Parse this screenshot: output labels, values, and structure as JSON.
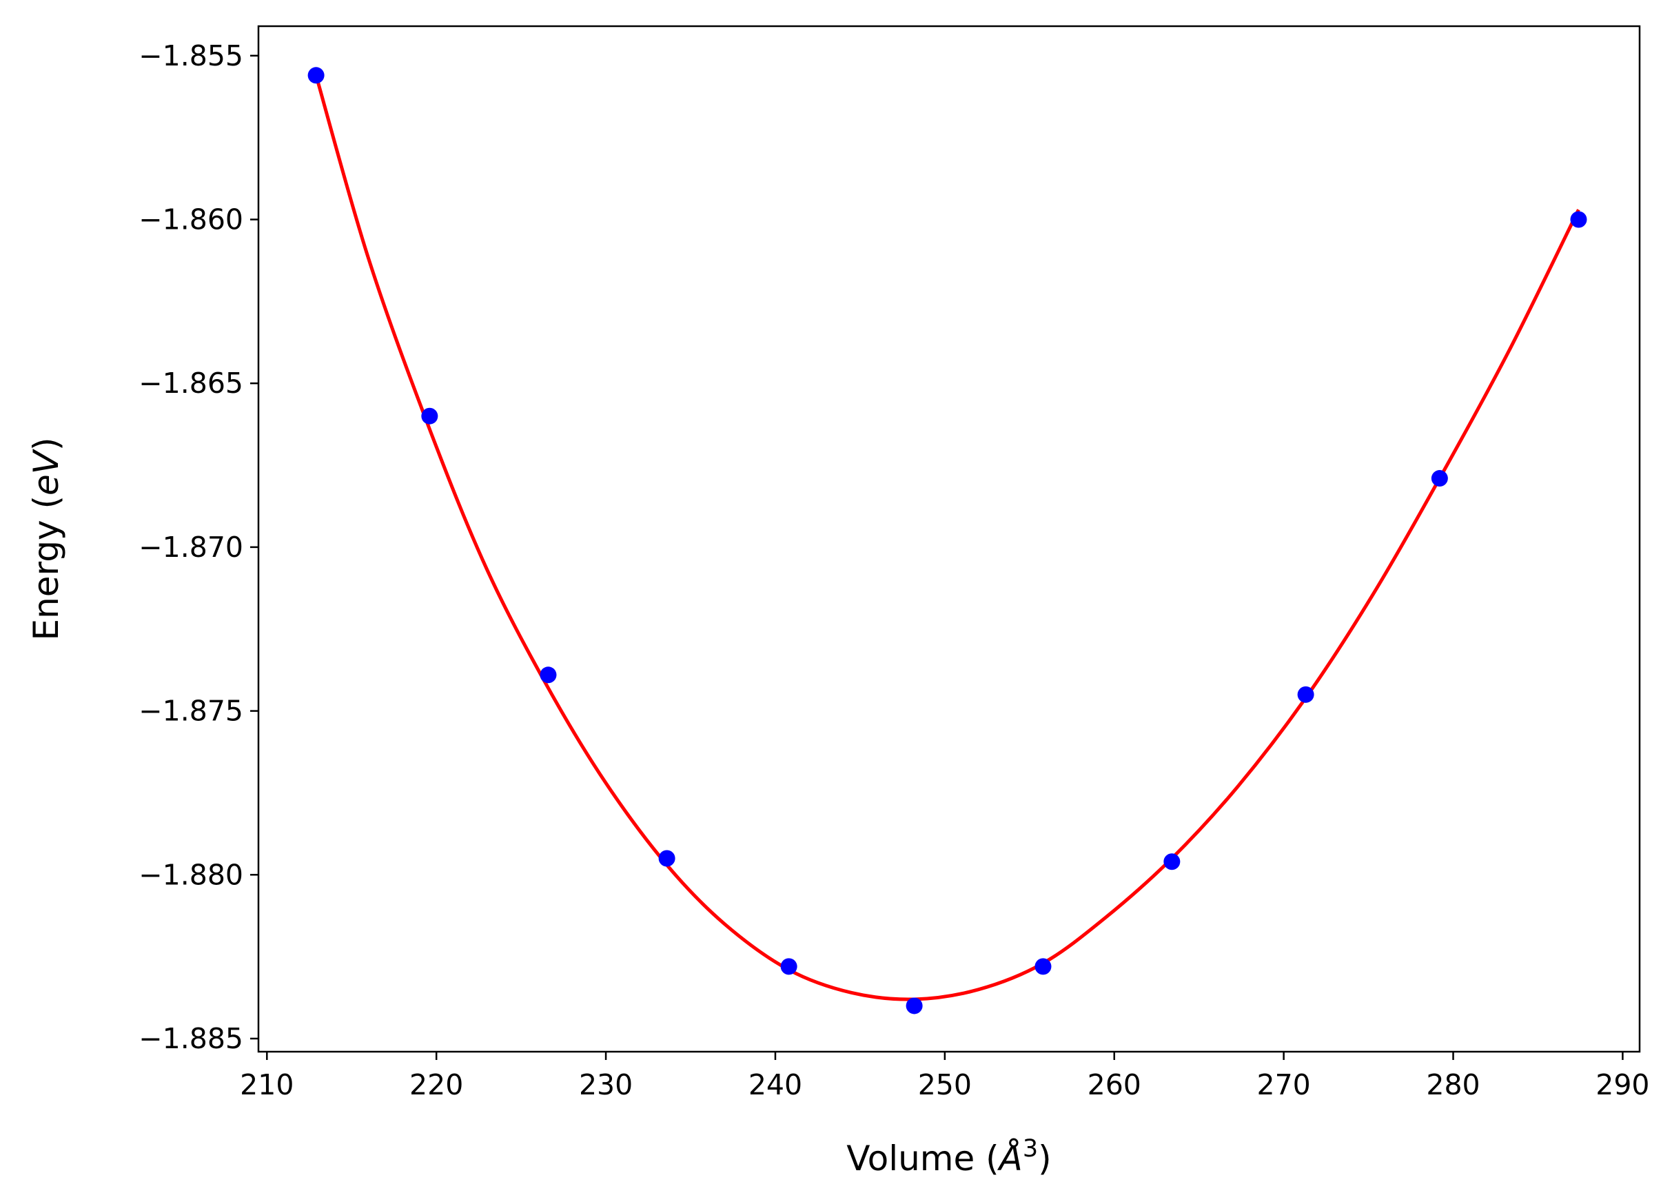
{
  "chart_data": {
    "type": "scatter",
    "title": "",
    "xlabel_parts": {
      "prefix": "Volume (",
      "italic": "Å",
      "superscript": "3",
      "suffix": ")"
    },
    "ylabel_parts": {
      "prefix": "Energy (",
      "italic": "eV",
      "suffix": ")"
    },
    "xlim": [
      209.5,
      291.0
    ],
    "ylim": [
      -1.8854,
      -1.8541
    ],
    "xticks": [
      210,
      220,
      230,
      240,
      250,
      260,
      270,
      280,
      290
    ],
    "xtick_labels": [
      "210",
      "220",
      "230",
      "240",
      "250",
      "260",
      "270",
      "280",
      "290"
    ],
    "yticks": [
      -1.855,
      -1.86,
      -1.865,
      -1.87,
      -1.875,
      -1.88,
      -1.885
    ],
    "ytick_labels": [
      "−1.855",
      "−1.860",
      "−1.865",
      "−1.870",
      "−1.875",
      "−1.880",
      "−1.885"
    ],
    "grid": false,
    "series": [
      {
        "kind": "points",
        "color": "#0000ff",
        "x": [
          212.9,
          219.6,
          226.6,
          233.6,
          240.8,
          248.2,
          255.8,
          263.4,
          271.3,
          279.2,
          287.4
        ],
        "y": [
          -1.8556,
          -1.866,
          -1.8739,
          -1.8795,
          -1.8828,
          -1.884,
          -1.8828,
          -1.8796,
          -1.8745,
          -1.8679,
          -1.86
        ]
      },
      {
        "kind": "fit-line",
        "color": "#ff0000",
        "x": [
          212.9,
          216.0,
          219.6,
          223.0,
          226.6,
          230.0,
          233.6,
          237.0,
          240.8,
          244.5,
          248.2,
          252.0,
          255.8,
          259.5,
          263.4,
          267.3,
          271.3,
          275.2,
          279.2,
          283.3,
          287.4
        ],
        "y": [
          -1.8556,
          -1.8612,
          -1.8664,
          -1.8707,
          -1.8743,
          -1.8772,
          -1.8797,
          -1.8815,
          -1.8829,
          -1.8836,
          -1.8838,
          -1.8835,
          -1.8827,
          -1.8813,
          -1.8795,
          -1.8773,
          -1.8746,
          -1.8715,
          -1.8679,
          -1.864,
          -1.8597
        ]
      }
    ]
  }
}
